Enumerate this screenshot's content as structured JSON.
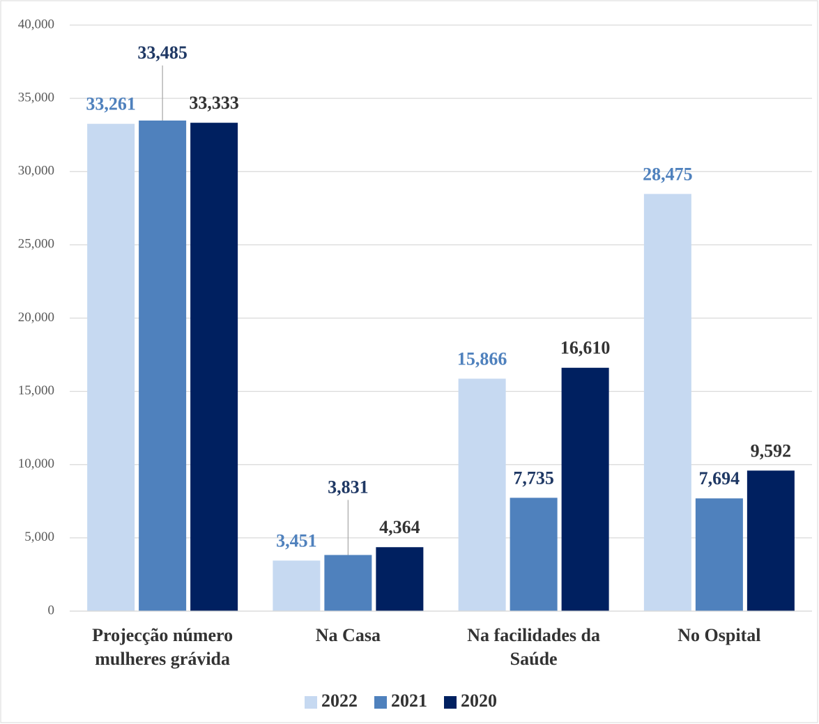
{
  "chart_data": {
    "type": "bar",
    "categories": [
      "Projecção número mulheres grávida",
      "Na Casa",
      "Na facilidades da Saúde",
      "No Ospital"
    ],
    "series": [
      {
        "name": "2022",
        "color": "#c6d9f1",
        "label_color": "#4f81bd",
        "values": [
          33261,
          3451,
          15866,
          28475
        ],
        "value_labels": [
          "33,261",
          "3,451",
          "15,866",
          "28,475"
        ]
      },
      {
        "name": "2021",
        "color": "#4f81bd",
        "label_color": "#1f3864",
        "values": [
          33485,
          3831,
          7735,
          7694
        ],
        "value_labels": [
          "33,485",
          "3,831",
          "7,735",
          "7,694"
        ]
      },
      {
        "name": "2020",
        "color": "#002060",
        "label_color": "#333333",
        "values": [
          33333,
          4364,
          16610,
          9592
        ],
        "value_labels": [
          "33,333",
          "4,364",
          "16,610",
          "9,592"
        ]
      }
    ],
    "ylim": [
      0,
      40000
    ],
    "yticks": [
      0,
      {
        "value": 5000,
        "label": "5,000"
      },
      {
        "value": 10000,
        "label": "10,000"
      },
      {
        "value": 15000,
        "label": "15,000"
      },
      {
        "value": 20000,
        "label": "20,000"
      },
      {
        "value": 25000,
        "label": "25,000"
      },
      {
        "value": 30000,
        "label": "30,000"
      },
      {
        "value": 35000,
        "label": "35,000"
      },
      {
        "value": 40000,
        "label": "40,000"
      }
    ],
    "grid": true,
    "legend": "bottom"
  }
}
